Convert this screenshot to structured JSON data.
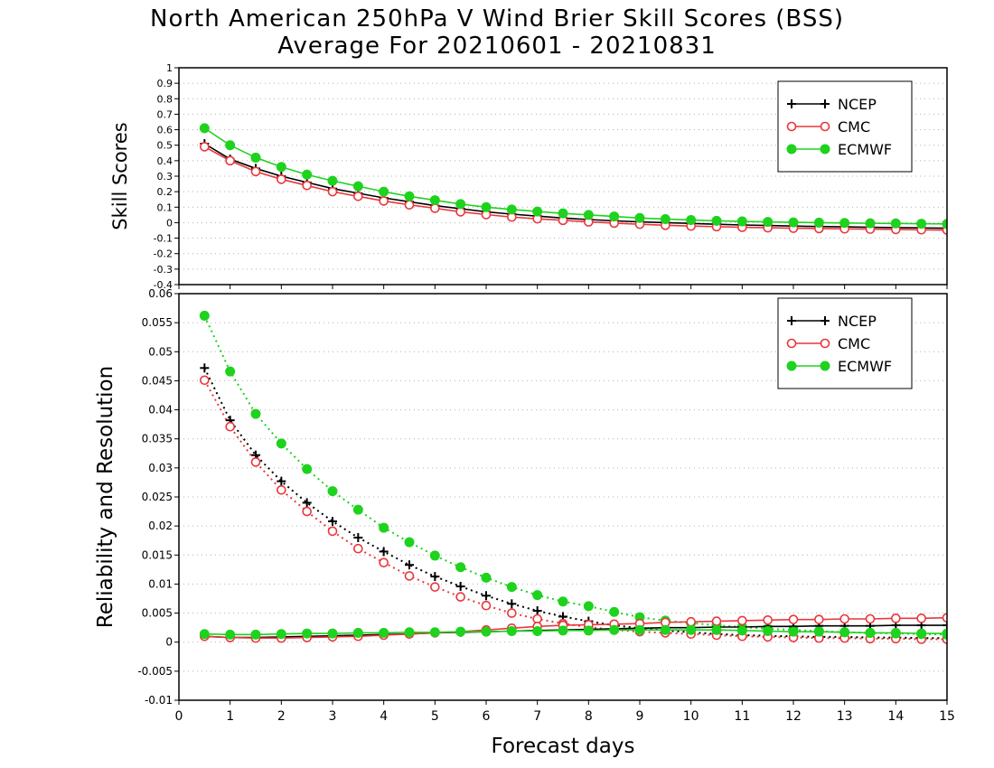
{
  "title_lines": [
    "North American 250hPa V Wind Brier Skill Scores (BSS)",
    "Average For 20210601 - 20210831"
  ],
  "colors": {
    "NCEP": "#000000",
    "CMC": "#e8373c",
    "ECMWF": "#1ed21e"
  },
  "chart_data": [
    {
      "type": "line",
      "ylabel": "Skill Scores",
      "xlabel": "",
      "xlim": [
        0,
        15
      ],
      "ylim": [
        -0.4,
        1
      ],
      "yticks": [
        "-0.4",
        "-0.3",
        "-0.2",
        "-0.1",
        "0",
        "0.1",
        "0.2",
        "0.3",
        "0.4",
        "0.5",
        "0.6",
        "0.7",
        "0.8",
        "0.9",
        "1"
      ],
      "legend_position": "top-right",
      "grid": true,
      "x": [
        0.5,
        1,
        1.5,
        2,
        2.5,
        3,
        3.5,
        4,
        4.5,
        5,
        5.5,
        6,
        6.5,
        7,
        7.5,
        8,
        8.5,
        9,
        9.5,
        10,
        10.5,
        11,
        11.5,
        12,
        12.5,
        13,
        13.5,
        14,
        14.5,
        15
      ],
      "series": [
        {
          "name": "NCEP",
          "marker": "plus",
          "line": "solid",
          "values": [
            0.51,
            0.41,
            0.35,
            0.3,
            0.26,
            0.22,
            0.19,
            0.16,
            0.135,
            0.11,
            0.09,
            0.07,
            0.055,
            0.042,
            0.03,
            0.02,
            0.012,
            0.005,
            0,
            -0.005,
            -0.01,
            -0.015,
            -0.018,
            -0.022,
            -0.025,
            -0.027,
            -0.03,
            -0.032,
            -0.034,
            -0.036
          ]
        },
        {
          "name": "CMC",
          "marker": "open-circle",
          "line": "solid",
          "values": [
            0.49,
            0.4,
            0.33,
            0.28,
            0.24,
            0.2,
            0.17,
            0.14,
            0.115,
            0.093,
            0.07,
            0.052,
            0.036,
            0.025,
            0.015,
            0.005,
            -0.003,
            -0.01,
            -0.017,
            -0.022,
            -0.026,
            -0.03,
            -0.033,
            -0.036,
            -0.038,
            -0.04,
            -0.042,
            -0.044,
            -0.046,
            -0.048
          ]
        },
        {
          "name": "ECMWF",
          "marker": "filled-circle",
          "line": "solid",
          "values": [
            0.61,
            0.5,
            0.42,
            0.36,
            0.31,
            0.27,
            0.235,
            0.2,
            0.17,
            0.145,
            0.12,
            0.1,
            0.085,
            0.072,
            0.06,
            0.05,
            0.04,
            0.03,
            0.023,
            0.017,
            0.012,
            0.008,
            0.005,
            0.002,
            0,
            -0.002,
            -0.004,
            -0.005,
            -0.007,
            -0.008
          ]
        }
      ]
    },
    {
      "type": "line",
      "ylabel": "Reliability and Resolution",
      "xlabel": "Forecast days",
      "xlim": [
        0,
        15
      ],
      "xticks": [
        "0",
        "1",
        "2",
        "3",
        "4",
        "5",
        "6",
        "7",
        "8",
        "9",
        "10",
        "11",
        "12",
        "13",
        "14",
        "15"
      ],
      "ylim": [
        -0.01,
        0.06
      ],
      "yticks": [
        "-0.01",
        "-0.005",
        "0",
        "0.005",
        "0.01",
        "0.015",
        "0.02",
        "0.025",
        "0.03",
        "0.035",
        "0.04",
        "0.045",
        "0.05",
        "0.055",
        "0.06"
      ],
      "legend_position": "top-right",
      "grid": true,
      "x": [
        0.5,
        1,
        1.5,
        2,
        2.5,
        3,
        3.5,
        4,
        4.5,
        5,
        5.5,
        6,
        6.5,
        7,
        7.5,
        8,
        8.5,
        9,
        9.5,
        10,
        10.5,
        11,
        11.5,
        12,
        12.5,
        13,
        13.5,
        14,
        14.5,
        15
      ],
      "series": [
        {
          "name": "NCEP",
          "marker": "plus",
          "line": "dotted",
          "component": "resolution",
          "values": [
            0.0472,
            0.0382,
            0.0322,
            0.0277,
            0.024,
            0.0208,
            0.018,
            0.0156,
            0.0133,
            0.0113,
            0.0096,
            0.008,
            0.0066,
            0.0054,
            0.0044,
            0.0036,
            0.0029,
            0.0024,
            0.002,
            0.0017,
            0.0014,
            0.0012,
            0.0011,
            0.001,
            0.0009,
            0.0009,
            0.0008,
            0.0008,
            0.0007,
            0.0007
          ]
        },
        {
          "name": "CMC",
          "marker": "open-circle",
          "line": "dotted",
          "component": "resolution",
          "values": [
            0.0451,
            0.0371,
            0.031,
            0.0262,
            0.0225,
            0.0191,
            0.0161,
            0.0137,
            0.0114,
            0.0095,
            0.0078,
            0.0063,
            0.005,
            0.004,
            0.0032,
            0.0026,
            0.0021,
            0.0018,
            0.0016,
            0.0014,
            0.0012,
            0.001,
            0.0009,
            0.0008,
            0.0007,
            0.0007,
            0.0006,
            0.0006,
            0.0005,
            0.0005
          ]
        },
        {
          "name": "ECMWF",
          "marker": "filled-circle",
          "line": "dotted",
          "component": "resolution",
          "values": [
            0.0562,
            0.0466,
            0.0393,
            0.0342,
            0.0298,
            0.026,
            0.0228,
            0.0197,
            0.0172,
            0.0149,
            0.0129,
            0.0111,
            0.0095,
            0.0081,
            0.007,
            0.0062,
            0.0052,
            0.0043,
            0.0037,
            0.0033,
            0.0029,
            0.0026,
            0.0023,
            0.0021,
            0.0019,
            0.0017,
            0.0016,
            0.0015,
            0.0014,
            0.0013
          ]
        },
        {
          "name": "NCEP",
          "marker": "plus",
          "line": "solid",
          "component": "reliability",
          "values": [
            0.001,
            0.0008,
            0.0008,
            0.0009,
            0.001,
            0.0011,
            0.0012,
            0.0013,
            0.0014,
            0.0016,
            0.0017,
            0.0018,
            0.0019,
            0.002,
            0.0021,
            0.0022,
            0.0023,
            0.0024,
            0.0025,
            0.0025,
            0.0026,
            0.0026,
            0.0027,
            0.0027,
            0.0028,
            0.0028,
            0.0028,
            0.0029,
            0.0029,
            0.0029
          ]
        },
        {
          "name": "CMC",
          "marker": "open-circle",
          "line": "solid",
          "component": "reliability",
          "values": [
            0.001,
            0.0008,
            0.0007,
            0.0007,
            0.0008,
            0.0009,
            0.001,
            0.0012,
            0.0014,
            0.0016,
            0.0018,
            0.0021,
            0.0024,
            0.0027,
            0.0029,
            0.003,
            0.0031,
            0.0032,
            0.0034,
            0.0035,
            0.0036,
            0.0037,
            0.0038,
            0.0039,
            0.0039,
            0.004,
            0.004,
            0.0041,
            0.0041,
            0.0042
          ]
        },
        {
          "name": "ECMWF",
          "marker": "filled-circle",
          "line": "solid",
          "component": "reliability",
          "values": [
            0.0014,
            0.0013,
            0.0013,
            0.0014,
            0.0015,
            0.0015,
            0.0016,
            0.0016,
            0.0017,
            0.0017,
            0.0018,
            0.0018,
            0.0019,
            0.0019,
            0.002,
            0.002,
            0.0021,
            0.0021,
            0.0021,
            0.0021,
            0.0021,
            0.002,
            0.0019,
            0.0018,
            0.0018,
            0.0017,
            0.0016,
            0.0016,
            0.0015,
            0.0015
          ]
        }
      ]
    }
  ]
}
